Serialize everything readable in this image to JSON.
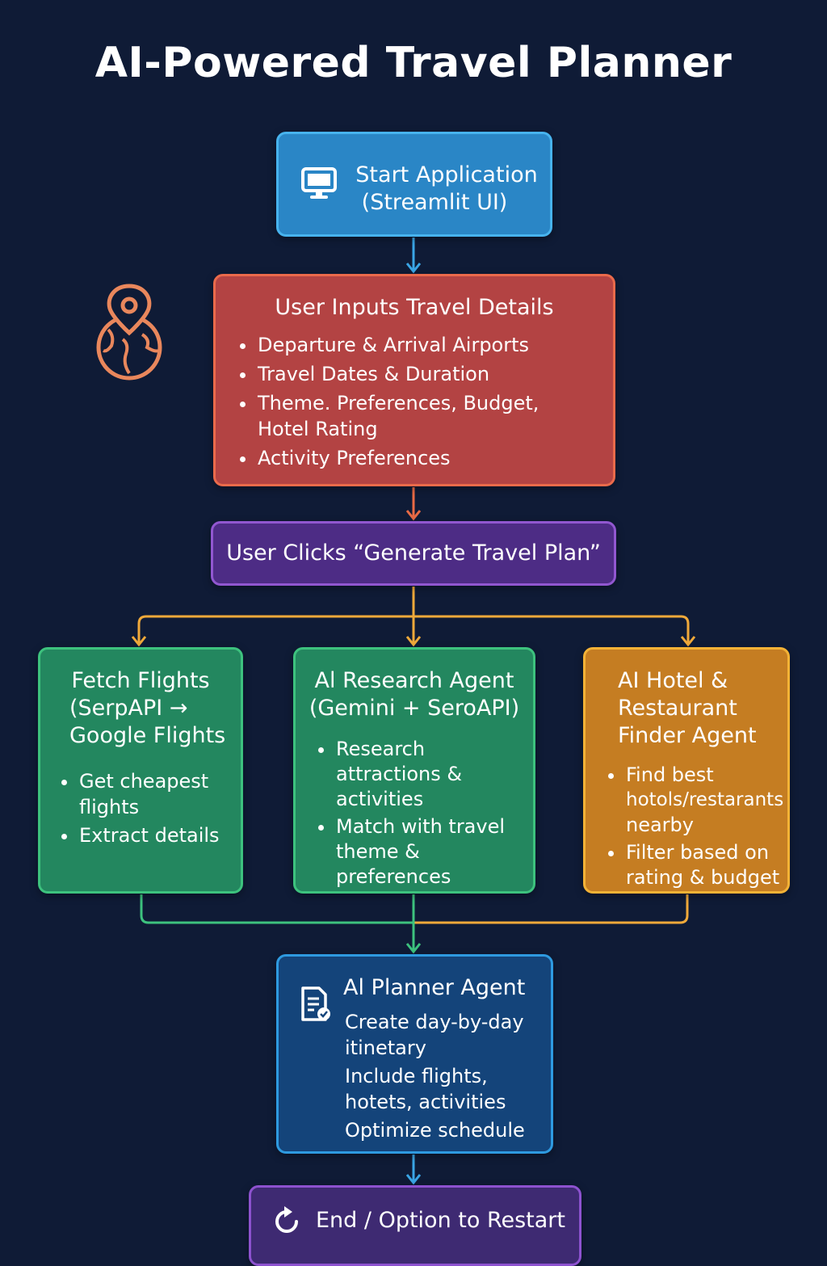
{
  "title": "AI-Powered Travel Planner",
  "nodes": {
    "start": {
      "line1": "Start Application",
      "line2": "(Streamlit UI)"
    },
    "inputs": {
      "heading": "User Inputs Travel Details",
      "items": [
        "Departure & Arrival Airports",
        "Travel Dates & Duration",
        "Theme. Preferences, Budget,",
        "Hotel Rating",
        "Activity Preferences"
      ]
    },
    "generate": {
      "label": "User Clicks “Generate Travel Plan”"
    },
    "flights": {
      "heading": [
        "Fetch Flights",
        "(SerpAPI →",
        "Google Flights"
      ],
      "items": [
        "Get cheapest",
        "flights",
        "Extract details"
      ]
    },
    "research": {
      "heading": [
        "Al Research Agent",
        "(Gemini + SeroAPI)"
      ],
      "items": [
        "Research",
        "attractions &",
        "activities",
        "Match with travel",
        "theme & preferences"
      ]
    },
    "hotel": {
      "heading": [
        "AI Hotel &",
        "Restaurant",
        "Finder Agent"
      ],
      "items": [
        "Find best",
        "hotols/restarants",
        "nearby",
        "Filter based on",
        "rating & budget"
      ]
    },
    "planner": {
      "heading": "Al Planner Agent",
      "lines": [
        "Create day-by-day",
        "itinetary",
        "Include flights,",
        "hotets, activities",
        "Optimize schedule"
      ]
    },
    "end": {
      "label": "End / Option to Restart"
    }
  },
  "colors": {
    "background": "#0f1b36",
    "start": "#2a86c6",
    "inputs": "#b34343",
    "generate": "#4d2c85",
    "agent_green": "#23875f",
    "agent_orange": "#c57d22",
    "planner": "#14447a",
    "end": "#3e2a72"
  },
  "icons": {
    "start": "monitor-icon",
    "side": "globe-location-pin-icon",
    "planner": "document-check-icon",
    "end": "restart-icon"
  }
}
